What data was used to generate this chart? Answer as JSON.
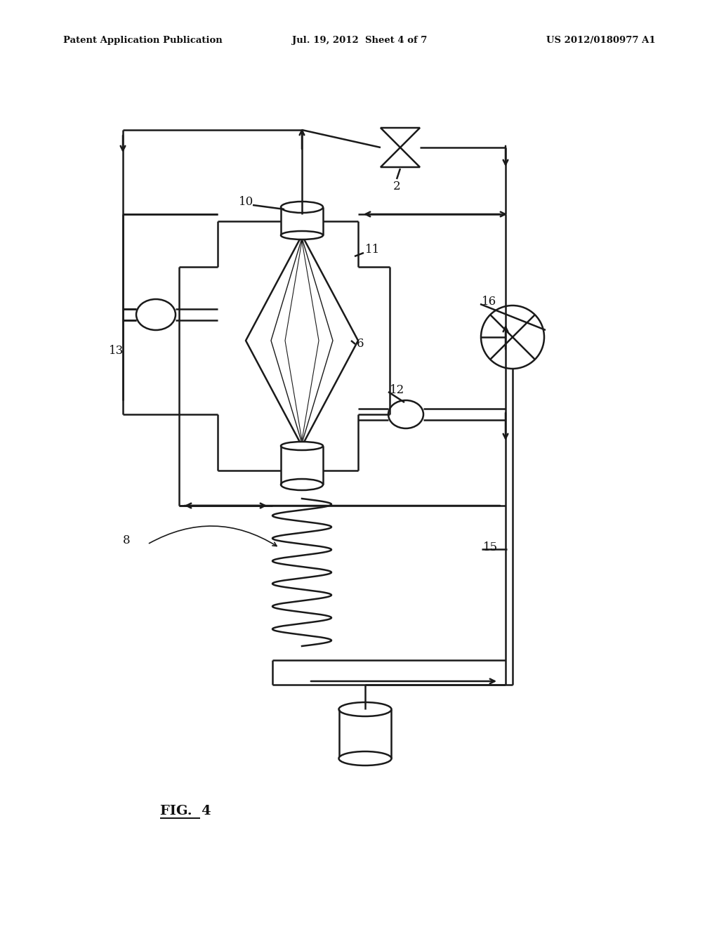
{
  "bg_color": "#ffffff",
  "line_color": "#1a1a1a",
  "header_left": "Patent Application Publication",
  "header_center": "Jul. 19, 2012  Sheet 4 of 7",
  "header_right": "US 2012/0180977 A1",
  "fig_label": "FIG.  4"
}
